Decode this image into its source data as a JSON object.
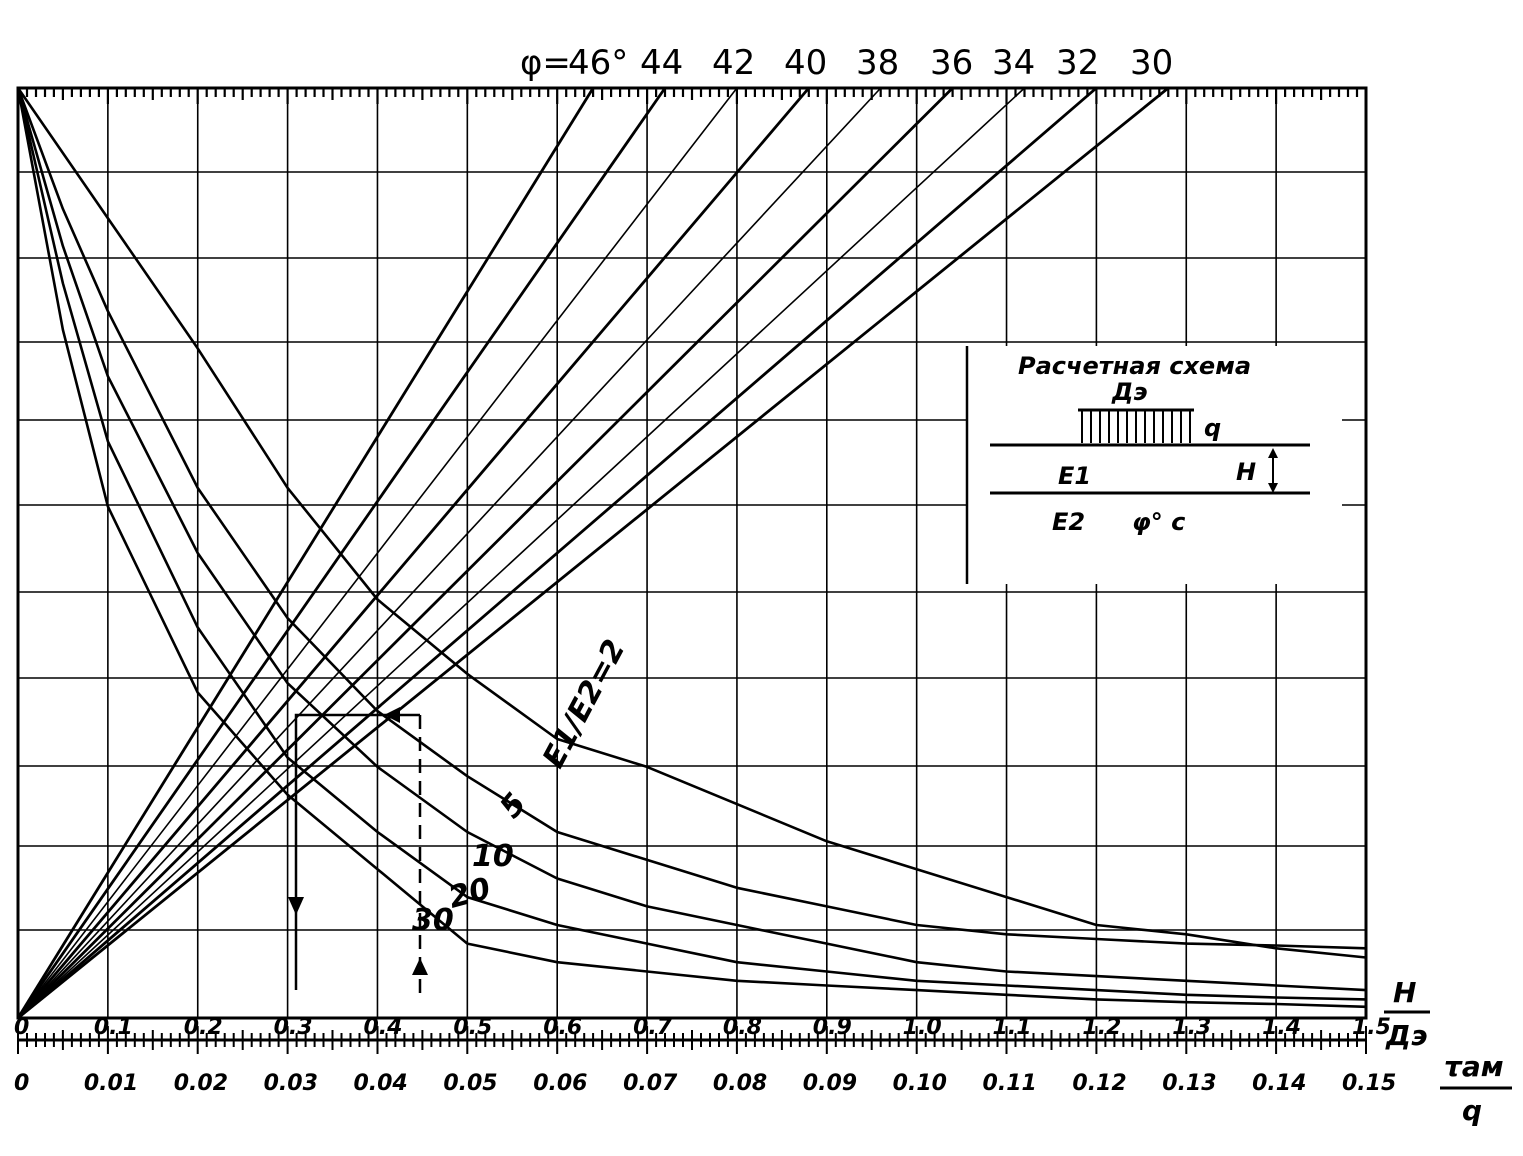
{
  "chart_data": {
    "type": "line",
    "x_axis_upper": {
      "label_num": "H",
      "label_den": "Дэ",
      "range": [
        0,
        1.5
      ],
      "ticks": [
        "0",
        "0.1",
        "0.2",
        "0.3",
        "0.4",
        "0.5",
        "0.6",
        "0.7",
        "0.8",
        "0.9",
        "1.0",
        "1.1",
        "1.2",
        "1.3",
        "1.4",
        "1.5"
      ]
    },
    "x_axis_lower": {
      "label_num": "τaм",
      "label_den": "q",
      "range": [
        0,
        0.15
      ],
      "ticks": [
        "0",
        "0.01",
        "0.02",
        "0.03",
        "0.04",
        "0.05",
        "0.06",
        "0.07",
        "0.08",
        "0.09",
        "0.10",
        "0.11",
        "0.12",
        "0.13",
        "0.14",
        "0.15"
      ]
    },
    "phi_header": {
      "prefix": "φ=",
      "labels": [
        "46°",
        "44",
        "42",
        "40",
        "38",
        "36",
        "34",
        "32",
        "30"
      ]
    },
    "phi_lines": [
      {
        "phi": "46",
        "x_top": 0.64
      },
      {
        "phi": "44",
        "x_top": 0.72
      },
      {
        "phi": "42",
        "x_top": 0.8
      },
      {
        "phi": "40",
        "x_top": 0.88
      },
      {
        "phi": "38",
        "x_top": 0.96
      },
      {
        "phi": "36",
        "x_top": 1.04
      },
      {
        "phi": "34",
        "x_top": 1.12
      },
      {
        "phi": "32",
        "x_top": 1.2
      },
      {
        "phi": "30",
        "x_top": 1.28
      }
    ],
    "series_label_prefix": "E1/E2=",
    "series": [
      {
        "name": "2",
        "points": [
          [
            0,
            1.0
          ],
          [
            0.1,
            0.86
          ],
          [
            0.2,
            0.72
          ],
          [
            0.3,
            0.57
          ],
          [
            0.4,
            0.45
          ],
          [
            0.5,
            0.37
          ],
          [
            0.6,
            0.3
          ],
          [
            0.7,
            0.27
          ],
          [
            0.8,
            0.23
          ],
          [
            0.9,
            0.19
          ],
          [
            1.0,
            0.16
          ],
          [
            1.1,
            0.13
          ],
          [
            1.2,
            0.1
          ],
          [
            1.3,
            0.09
          ],
          [
            1.4,
            0.075
          ],
          [
            1.5,
            0.065
          ]
        ]
      },
      {
        "name": "5",
        "points": [
          [
            0,
            1.0
          ],
          [
            0.05,
            0.87
          ],
          [
            0.1,
            0.76
          ],
          [
            0.2,
            0.57
          ],
          [
            0.3,
            0.43
          ],
          [
            0.4,
            0.33
          ],
          [
            0.5,
            0.26
          ],
          [
            0.6,
            0.2
          ],
          [
            0.7,
            0.17
          ],
          [
            0.8,
            0.14
          ],
          [
            0.9,
            0.12
          ],
          [
            1.0,
            0.1
          ],
          [
            1.1,
            0.09
          ],
          [
            1.2,
            0.085
          ],
          [
            1.3,
            0.08
          ],
          [
            1.4,
            0.078
          ],
          [
            1.5,
            0.075
          ]
        ]
      },
      {
        "name": "10",
        "points": [
          [
            0,
            1.0
          ],
          [
            0.05,
            0.83
          ],
          [
            0.1,
            0.69
          ],
          [
            0.2,
            0.5
          ],
          [
            0.3,
            0.36
          ],
          [
            0.4,
            0.27
          ],
          [
            0.5,
            0.2
          ],
          [
            0.6,
            0.15
          ],
          [
            0.7,
            0.12
          ],
          [
            0.8,
            0.1
          ],
          [
            0.9,
            0.08
          ],
          [
            1.0,
            0.06
          ],
          [
            1.1,
            0.05
          ],
          [
            1.2,
            0.045
          ],
          [
            1.3,
            0.04
          ],
          [
            1.4,
            0.035
          ],
          [
            1.5,
            0.03
          ]
        ]
      },
      {
        "name": "20",
        "points": [
          [
            0,
            1.0
          ],
          [
            0.05,
            0.79
          ],
          [
            0.1,
            0.62
          ],
          [
            0.2,
            0.42
          ],
          [
            0.3,
            0.28
          ],
          [
            0.4,
            0.2
          ],
          [
            0.5,
            0.13
          ],
          [
            0.6,
            0.1
          ],
          [
            0.7,
            0.08
          ],
          [
            0.8,
            0.06
          ],
          [
            0.9,
            0.05
          ],
          [
            1.0,
            0.04
          ],
          [
            1.1,
            0.035
          ],
          [
            1.2,
            0.03
          ],
          [
            1.3,
            0.025
          ],
          [
            1.4,
            0.022
          ],
          [
            1.5,
            0.02
          ]
        ]
      },
      {
        "name": "30",
        "points": [
          [
            0,
            1.0
          ],
          [
            0.05,
            0.74
          ],
          [
            0.1,
            0.55
          ],
          [
            0.2,
            0.35
          ],
          [
            0.3,
            0.24
          ],
          [
            0.4,
            0.16
          ],
          [
            0.5,
            0.08
          ],
          [
            0.6,
            0.06
          ],
          [
            0.7,
            0.05
          ],
          [
            0.8,
            0.04
          ],
          [
            0.9,
            0.035
          ],
          [
            1.0,
            0.03
          ],
          [
            1.1,
            0.025
          ],
          [
            1.2,
            0.02
          ],
          [
            1.3,
            0.017
          ],
          [
            1.4,
            0.015
          ],
          [
            1.5,
            0.012
          ]
        ]
      }
    ],
    "grid": true,
    "legend": "none"
  },
  "schema": {
    "title": "Расчетная схема",
    "de": "Дэ",
    "q": "q",
    "e1": "E1",
    "h": "H",
    "e2": "E2",
    "phi_c": "φ° c"
  }
}
